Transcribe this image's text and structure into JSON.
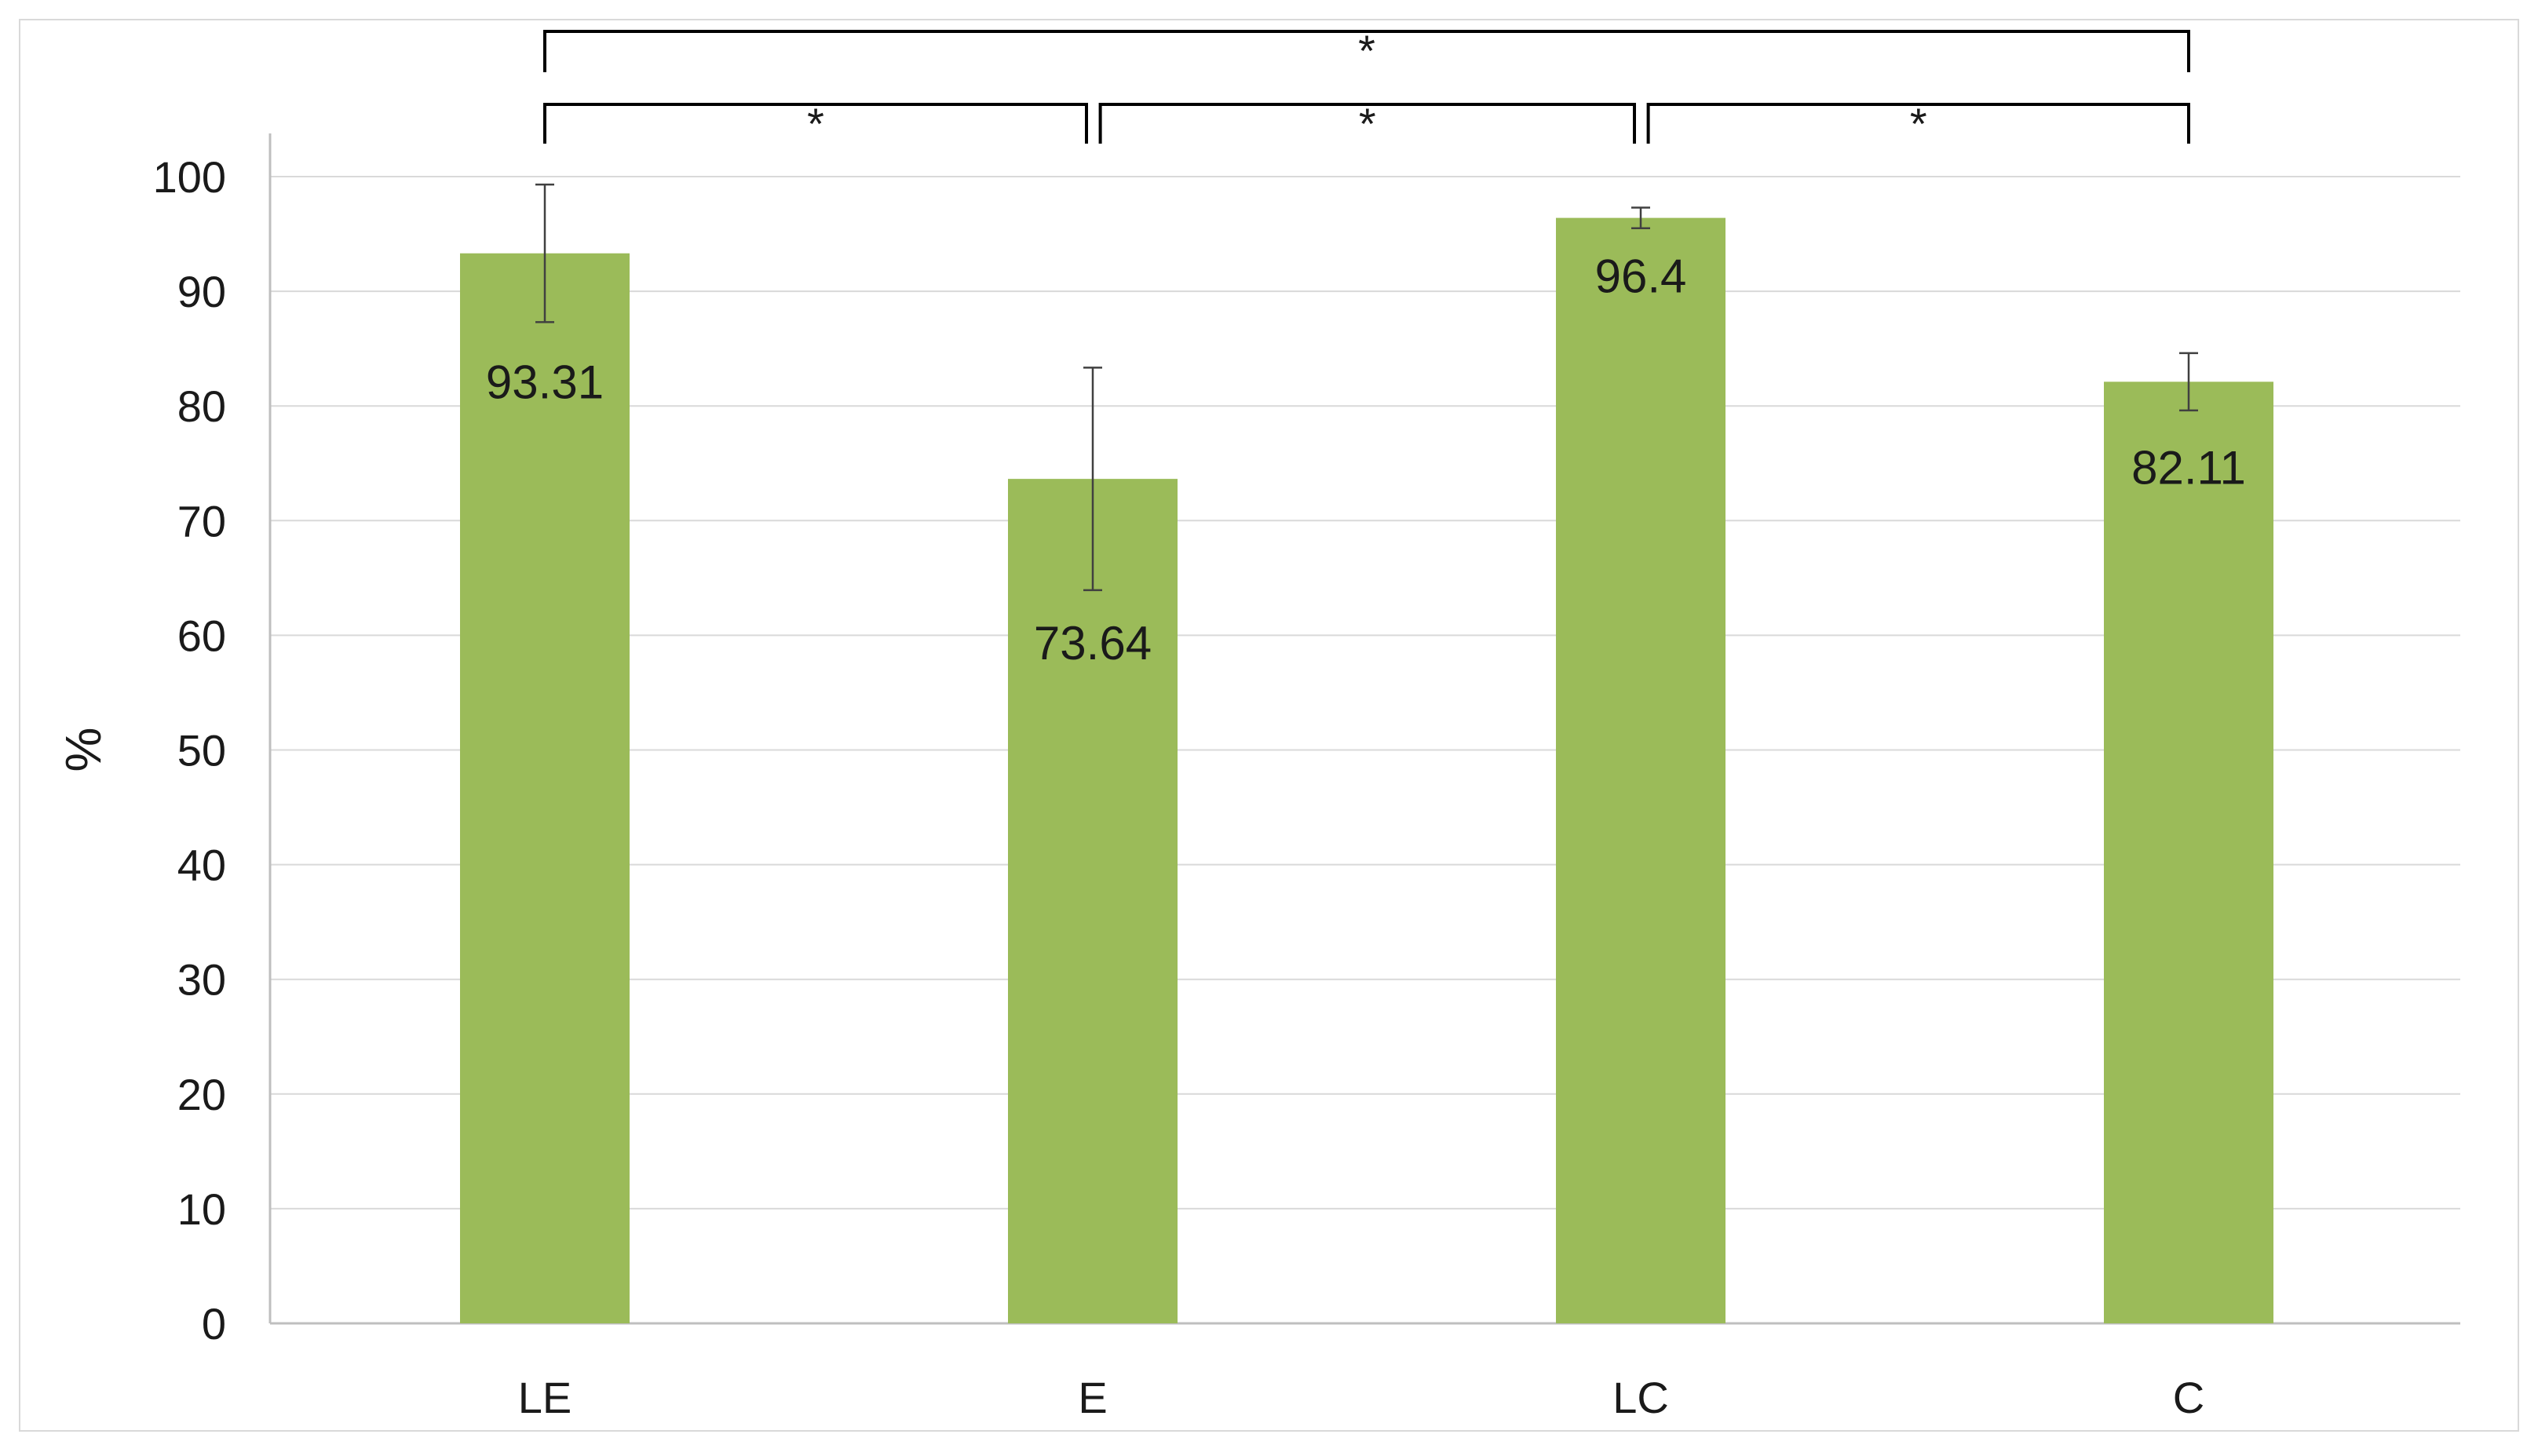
{
  "chart_data": {
    "type": "bar",
    "categories": [
      "LE",
      "E",
      "LC",
      "C"
    ],
    "values": [
      93.31,
      73.64,
      96.4,
      82.11
    ],
    "data_labels": [
      "93.31",
      "73.64",
      "96.4",
      "82.11"
    ],
    "error_bars": [
      6.0,
      9.7,
      0.9,
      2.5
    ],
    "ylabel": "%",
    "xlabel": "",
    "title": "",
    "ylim": [
      0,
      100
    ],
    "yticks": [
      0,
      10,
      20,
      30,
      40,
      50,
      60,
      70,
      80,
      90,
      100
    ],
    "grid": "horizontal",
    "legend": "none",
    "bar_color": "#9bbb59",
    "significance": [
      {
        "from": "LE",
        "to": "C",
        "label": "*",
        "level": 2
      },
      {
        "from": "LE",
        "to": "E",
        "label": "*",
        "level": 1
      },
      {
        "from": "E",
        "to": "LC",
        "label": "*",
        "level": 1
      },
      {
        "from": "LC",
        "to": "C",
        "label": "*",
        "level": 1
      }
    ]
  }
}
